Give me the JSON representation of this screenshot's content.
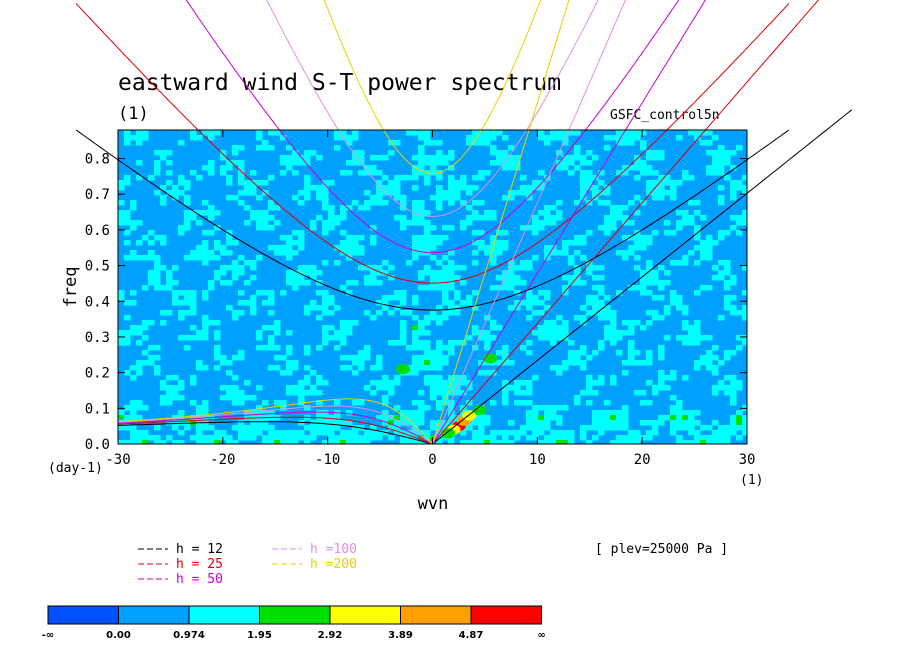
{
  "chart_data": {
    "type": "heatmap",
    "title": "eastward wind S-T power spectrum",
    "subtitle": "(1)",
    "run_name": "GSFC_control5n",
    "xlabel": "wvn",
    "ylabel": "freq",
    "x_unit": "(1)",
    "y_unit": "(day-1)",
    "xlim": [
      -30,
      30
    ],
    "ylim": [
      0,
      0.88
    ],
    "x_ticks": [
      -30,
      -20,
      -10,
      0,
      10,
      20,
      30
    ],
    "y_ticks": [
      0.0,
      0.1,
      0.2,
      0.3,
      0.4,
      0.5,
      0.6,
      0.7,
      0.8
    ],
    "plev_note": "[ plev=25000 Pa ]",
    "dispersion_curves": [
      {
        "label": "h = 12",
        "h": 12,
        "color": "#000000"
      },
      {
        "label": "h = 25",
        "h": 25,
        "color": "#dd0000"
      },
      {
        "label": "h = 50",
        "h": 50,
        "color": "#cc00cc"
      },
      {
        "label": "h =100",
        "h": 100,
        "color": "#e090e0"
      },
      {
        "label": "h =200",
        "h": 200,
        "color": "#e8d000"
      }
    ],
    "colorbar": {
      "labels": [
        "-∞",
        "0.00",
        "0.974",
        "1.95",
        "2.92",
        "3.89",
        "4.87",
        "∞"
      ],
      "colors": [
        "#0050ff",
        "#00a0ff",
        "#00ffff",
        "#00e000",
        "#ffff00",
        "#ffa000",
        "#ff0000"
      ]
    }
  }
}
